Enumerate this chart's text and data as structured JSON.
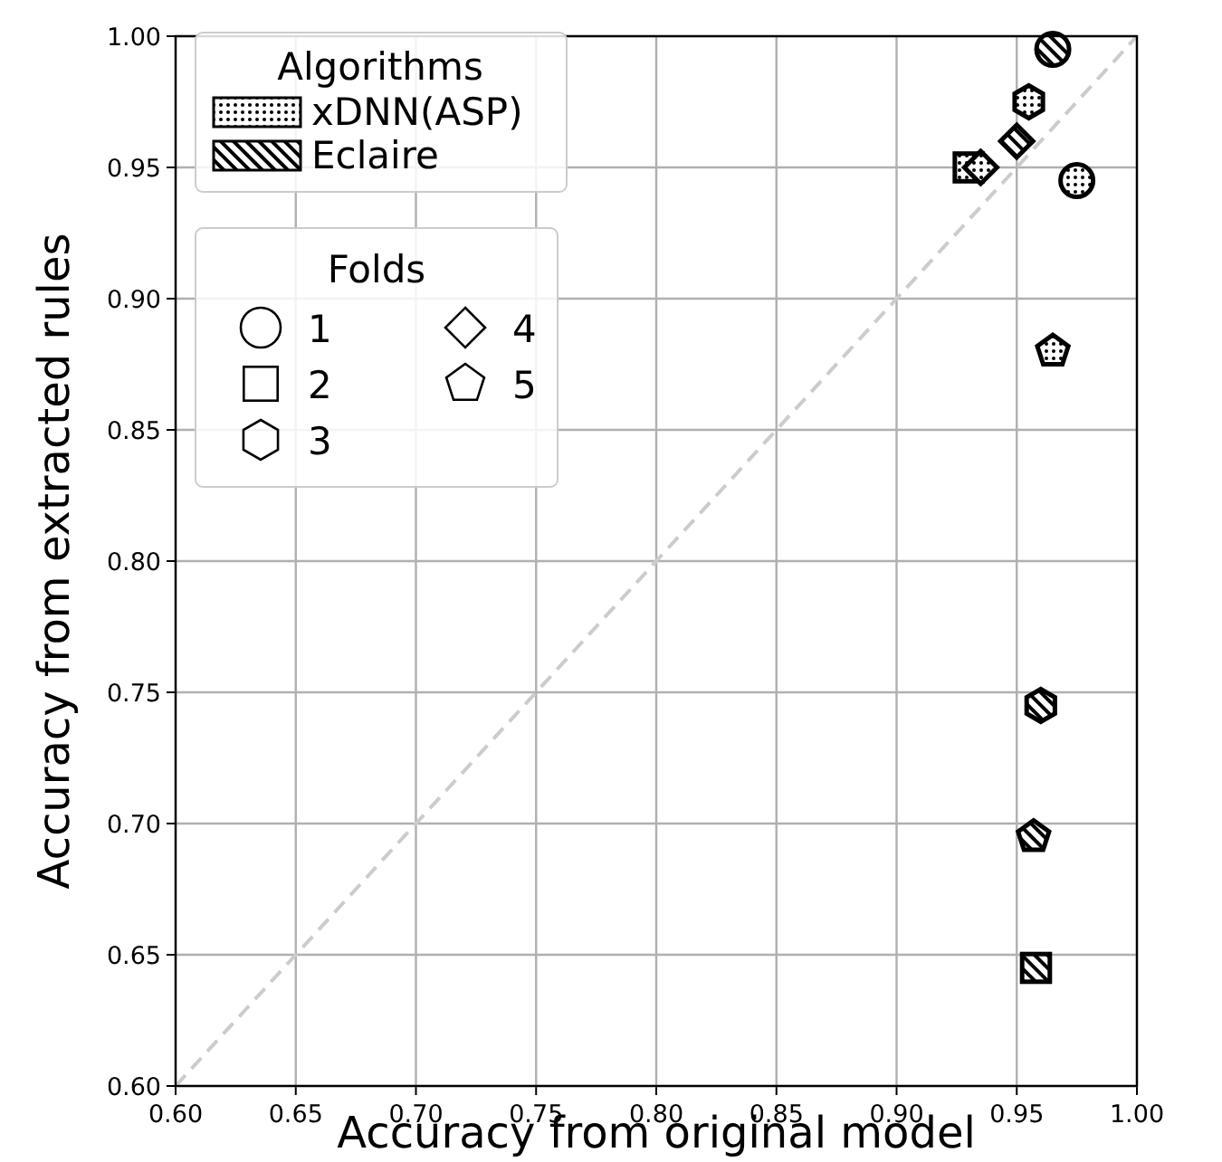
{
  "chart_data": {
    "type": "scatter",
    "xlabel": "Accuracy from original model",
    "ylabel": "Accuracy from extracted rules",
    "xlim": [
      0.6,
      1.0
    ],
    "ylim": [
      0.6,
      1.0
    ],
    "xticks": [
      {
        "value": 0.6,
        "label": "0.60"
      },
      {
        "value": 0.65,
        "label": "0.65"
      },
      {
        "value": 0.7,
        "label": "0.70"
      },
      {
        "value": 0.75,
        "label": "0.75"
      },
      {
        "value": 0.8,
        "label": "0.80"
      },
      {
        "value": 0.85,
        "label": "0.85"
      },
      {
        "value": 0.9,
        "label": "0.90"
      },
      {
        "value": 0.95,
        "label": "0.95"
      },
      {
        "value": 1.0,
        "label": "1.00"
      }
    ],
    "yticks": [
      {
        "value": 0.6,
        "label": "0.60"
      },
      {
        "value": 0.65,
        "label": "0.65"
      },
      {
        "value": 0.7,
        "label": "0.70"
      },
      {
        "value": 0.75,
        "label": "0.75"
      },
      {
        "value": 0.8,
        "label": "0.80"
      },
      {
        "value": 0.85,
        "label": "0.85"
      },
      {
        "value": 0.9,
        "label": "0.90"
      },
      {
        "value": 0.95,
        "label": "0.95"
      },
      {
        "value": 1.0,
        "label": "1.00"
      }
    ],
    "grid": true,
    "legend": "top left",
    "legend_title": [
      "Algorithms",
      "Folds"
    ],
    "marker": [
      "circle",
      "square",
      "hexagon",
      "diamond",
      "pentagon"
    ],
    "series": [
      {
        "name": "xDNN(ASP)",
        "color": "#000000",
        "x": [
          0.975,
          0.93,
          0.955,
          0.935,
          0.965
        ],
        "values": [
          0.945,
          0.95,
          0.975,
          0.95,
          0.88
        ]
      },
      {
        "name": "Eclaire",
        "color": "#000000",
        "x": [
          0.965,
          0.958,
          0.96,
          0.95,
          0.957
        ],
        "values": [
          0.995,
          0.645,
          0.745,
          0.96,
          0.695
        ]
      },
      {
        "name": "1",
        "color": "#000000",
        "marker": "circle",
        "x": [
          null
        ],
        "values": [
          null
        ]
      },
      {
        "name": "2",
        "color": "#000000",
        "marker": "square",
        "x": [
          null
        ],
        "values": [
          null
        ]
      },
      {
        "name": "3",
        "color": "#000000",
        "marker": "hexagon",
        "x": [
          null
        ],
        "values": [
          null
        ]
      },
      {
        "name": "4",
        "color": "#000000",
        "marker": "diamond",
        "x": [
          null
        ],
        "values": [
          null
        ]
      },
      {
        "name": "5",
        "color": "#000000",
        "marker": "pentagon",
        "x": [
          null
        ],
        "values": [
          null
        ]
      },
      {
        "type": "line",
        "color": "#cccccc",
        "line_style": "dashed",
        "x": [
          0.6,
          1.0
        ],
        "values": [
          0.6,
          1.0
        ]
      }
    ]
  }
}
